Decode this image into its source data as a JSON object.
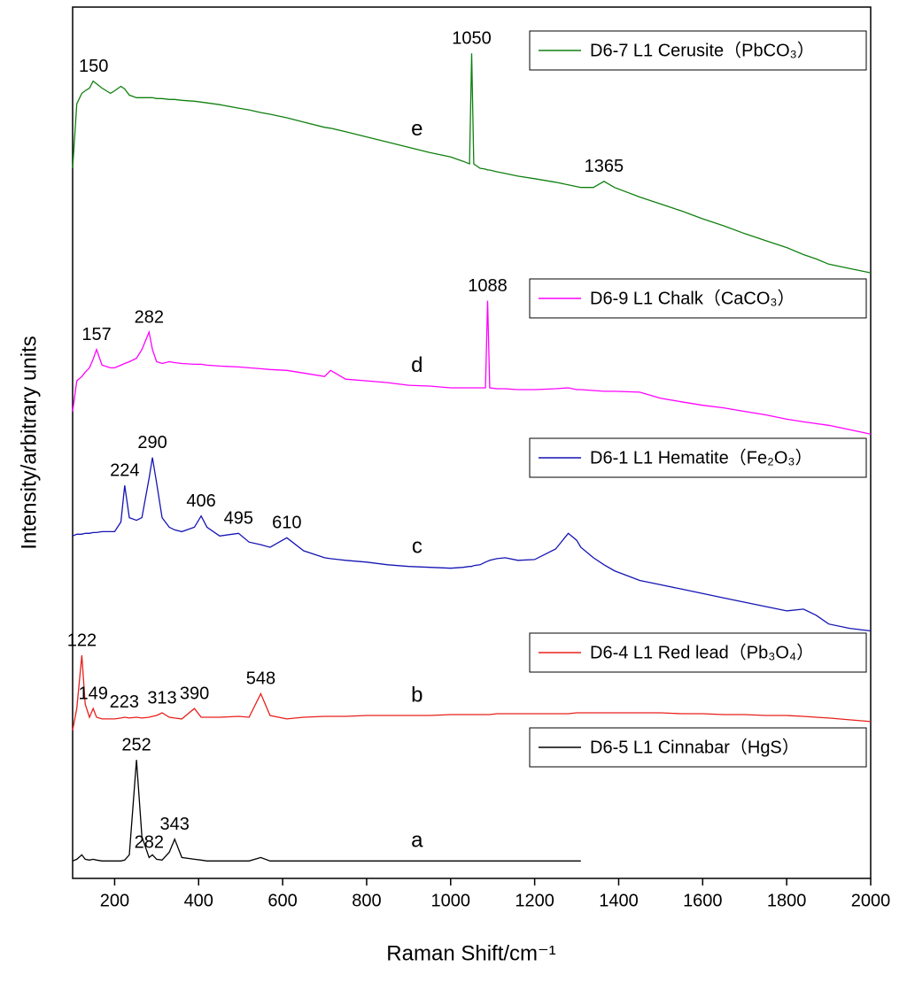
{
  "chart_data": {
    "type": "line",
    "x_label": "Raman Shift/cm⁻¹",
    "y_label": "Intensity/arbitrary units",
    "xlim": [
      100,
      2000
    ],
    "ylim": [
      0,
      100
    ],
    "xticks": [
      200,
      400,
      600,
      800,
      1000,
      1200,
      1400,
      1600,
      1800,
      2000
    ],
    "x": [
      100,
      110,
      122,
      130,
      140,
      149,
      157,
      170,
      190,
      200,
      215,
      224,
      235,
      252,
      265,
      282,
      290,
      300,
      313,
      330,
      343,
      360,
      390,
      406,
      420,
      450,
      495,
      520,
      548,
      570,
      610,
      650,
      700,
      714,
      750,
      800,
      850,
      900,
      950,
      1000,
      1030,
      1045,
      1050,
      1055,
      1070,
      1083,
      1088,
      1093,
      1110,
      1130,
      1160,
      1200,
      1250,
      1280,
      1300,
      1310,
      1340,
      1365,
      1390,
      1450,
      1500,
      1550,
      1600,
      1650,
      1700,
      1750,
      1800,
      1840,
      1870,
      1900,
      1950,
      2000
    ],
    "series": [
      {
        "name": "D6-7 L1 Cerusite（PbCO₃）",
        "label": "e",
        "color": "#108010",
        "peaks": [
          150,
          1050,
          1365
        ],
        "values": [
          81.5,
          88.9,
          90.1,
          90.4,
          90.7,
          91.5,
          91.2,
          90.7,
          90.1,
          90.4,
          90.9,
          90.6,
          89.9,
          89.6,
          89.6,
          89.6,
          89.6,
          89.5,
          89.5,
          89.4,
          89.4,
          89.3,
          89.2,
          89.1,
          89.0,
          88.8,
          88.4,
          88.2,
          87.9,
          87.7,
          87.3,
          86.8,
          86.2,
          86.1,
          85.7,
          85.1,
          84.5,
          83.9,
          83.3,
          82.8,
          82.3,
          82.0,
          94.7,
          82.0,
          81.5,
          81.4,
          81.3,
          81.3,
          81.1,
          80.9,
          80.6,
          80.3,
          79.9,
          79.6,
          79.4,
          79.3,
          79.3,
          80.0,
          79.3,
          78.2,
          77.4,
          76.6,
          75.7,
          74.9,
          74.0,
          73.2,
          72.4,
          71.6,
          71.1,
          70.5,
          70.0,
          69.5
        ]
      },
      {
        "name": "D6-9 L1 Chalk（CaCO₃）",
        "label": "d",
        "color": "#ff00ff",
        "peaks": [
          157,
          282,
          1088
        ],
        "values": [
          53.6,
          57.1,
          57.6,
          58.1,
          58.6,
          59.6,
          60.7,
          58.9,
          58.6,
          58.6,
          58.9,
          59.1,
          59.3,
          59.7,
          60.7,
          62.7,
          60.7,
          59.3,
          59.1,
          59.3,
          59.2,
          59.1,
          59.0,
          59.0,
          58.9,
          58.8,
          58.7,
          58.6,
          58.5,
          58.4,
          58.3,
          58.0,
          57.6,
          58.3,
          57.3,
          57.1,
          56.9,
          56.6,
          56.5,
          56.3,
          56.3,
          56.3,
          56.3,
          56.3,
          56.3,
          56.3,
          66.3,
          56.3,
          56.2,
          56.2,
          56.1,
          56.1,
          56.2,
          56.3,
          56.1,
          56.1,
          56.0,
          55.9,
          55.9,
          55.8,
          55.1,
          54.7,
          54.3,
          54.0,
          53.6,
          53.2,
          52.7,
          52.4,
          52.2,
          52.0,
          51.5,
          51.0
        ]
      },
      {
        "name": "D6-1 L1 Hematite（Fe₂O₃）",
        "label": "c",
        "color": "#1414b4",
        "peaks": [
          224,
          290,
          406,
          495,
          610
        ],
        "values": [
          39.3,
          39.5,
          39.5,
          39.6,
          39.6,
          39.7,
          39.7,
          39.8,
          39.8,
          39.8,
          40.9,
          45.1,
          41.4,
          41.1,
          41.4,
          45.9,
          48.3,
          45.4,
          41.4,
          40.3,
          40.0,
          39.8,
          40.3,
          41.6,
          40.3,
          39.3,
          39.6,
          38.6,
          38.3,
          38.0,
          39.1,
          37.6,
          36.8,
          36.7,
          36.5,
          36.3,
          36.0,
          35.8,
          35.7,
          35.6,
          35.7,
          35.8,
          35.8,
          35.9,
          36.0,
          36.3,
          36.4,
          36.5,
          36.7,
          36.8,
          36.5,
          36.6,
          37.8,
          39.6,
          38.8,
          38.0,
          36.8,
          36.0,
          35.3,
          34.2,
          33.7,
          33.2,
          32.7,
          32.2,
          31.7,
          31.2,
          30.7,
          30.9,
          30.2,
          29.2,
          28.7,
          28.4
        ]
      },
      {
        "name": "D6-4 L1 Red lead（Pb₃O₄）",
        "label": "b",
        "color": "#e8201c",
        "peaks": [
          122,
          149,
          223,
          313,
          390,
          548
        ],
        "values": [
          17.0,
          19.5,
          25.6,
          20.0,
          18.5,
          19.5,
          18.5,
          18.3,
          18.3,
          18.3,
          18.4,
          18.5,
          18.4,
          18.5,
          18.4,
          18.5,
          18.6,
          18.7,
          19.0,
          18.5,
          18.4,
          18.3,
          19.5,
          18.5,
          18.5,
          18.5,
          18.6,
          18.5,
          21.2,
          18.7,
          18.3,
          18.5,
          18.6,
          18.6,
          18.6,
          18.7,
          18.7,
          18.7,
          18.7,
          18.8,
          18.8,
          18.8,
          18.8,
          18.8,
          18.8,
          18.8,
          18.8,
          18.8,
          18.9,
          18.9,
          18.9,
          18.9,
          18.9,
          18.9,
          19.0,
          19.0,
          19.0,
          19.0,
          19.0,
          19.0,
          19.0,
          18.9,
          18.9,
          18.8,
          18.8,
          18.7,
          18.7,
          18.6,
          18.5,
          18.4,
          18.2,
          18.0
        ]
      },
      {
        "name": "D6-5 L1 Cinnabar（HgS）",
        "label": "a",
        "color": "#000000",
        "peaks": [
          252,
          282,
          343
        ],
        "values": [
          2.0,
          2.2,
          2.7,
          2.2,
          2.1,
          2.2,
          2.1,
          2.0,
          2.0,
          2.0,
          2.0,
          2.1,
          2.7,
          13.6,
          4.8,
          2.4,
          2.7,
          2.2,
          2.1,
          3.0,
          4.5,
          2.4,
          2.2,
          2.1,
          2.0,
          2.0,
          2.0,
          2.0,
          2.4,
          2.0,
          2.0,
          2.0,
          2.0,
          2.0,
          2.0,
          2.0,
          2.0,
          2.0,
          2.0,
          2.0,
          2.0,
          2.0,
          2.0,
          2.0,
          2.0,
          2.0,
          2.0,
          2.0,
          2.0,
          2.0,
          2.0,
          2.0,
          2.0,
          2.0,
          2.0,
          2.0,
          null,
          null,
          null,
          null,
          null,
          null,
          null,
          null,
          null,
          null,
          null,
          null,
          null,
          null,
          null,
          null
        ]
      }
    ]
  }
}
